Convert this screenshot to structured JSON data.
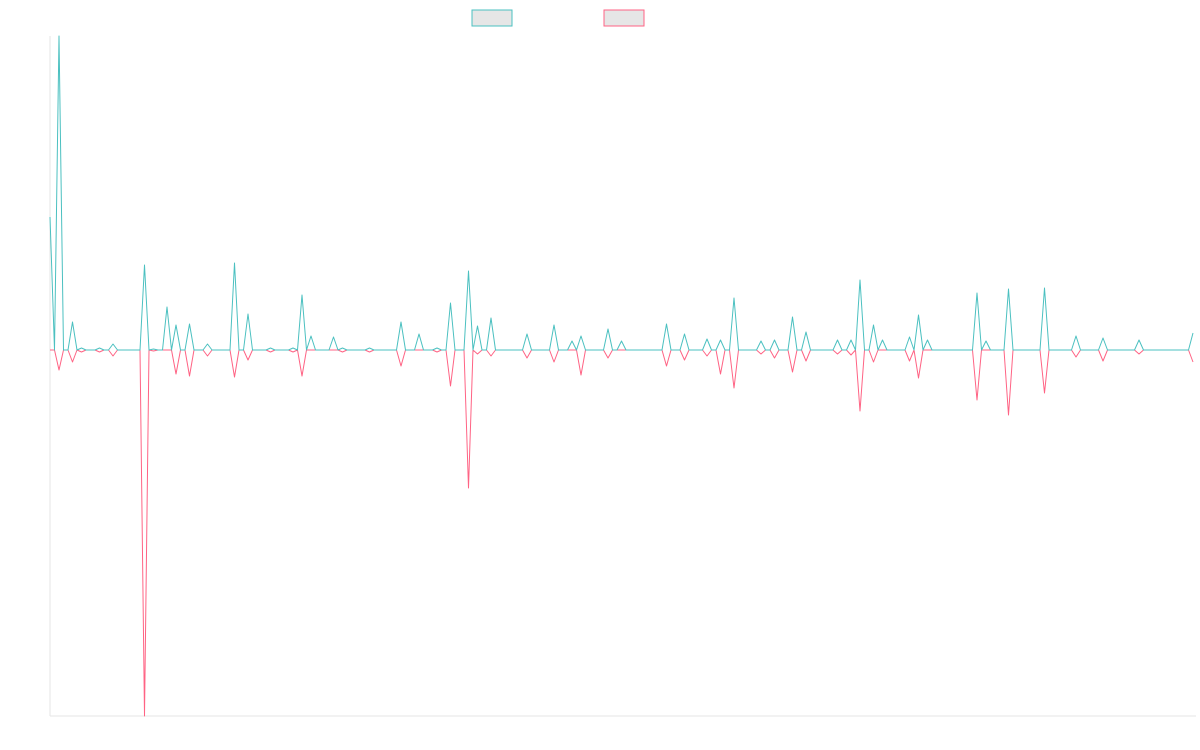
{
  "chart_data": {
    "type": "line",
    "xlim": [
      0,
      254
    ],
    "ylim": [
      -366,
      314
    ],
    "series": [
      {
        "color": "#4bc0c0",
        "values": [
          133,
          0,
          314,
          0,
          0,
          28,
          0,
          2,
          0,
          0,
          0,
          2,
          0,
          0,
          6,
          0,
          0,
          0,
          0,
          0,
          0,
          85,
          0,
          1,
          0,
          0,
          43,
          0,
          25,
          0,
          0,
          26,
          0,
          0,
          0,
          6,
          0,
          0,
          0,
          0,
          0,
          87,
          0,
          0,
          36,
          0,
          0,
          0,
          0,
          2,
          0,
          0,
          0,
          0,
          2,
          0,
          55,
          0,
          14,
          0,
          0,
          0,
          0,
          13,
          0,
          2,
          0,
          0,
          0,
          0,
          0,
          2,
          0,
          0,
          0,
          0,
          0,
          0,
          28,
          0,
          0,
          0,
          16,
          0,
          0,
          0,
          2,
          0,
          0,
          47,
          0,
          0,
          0,
          79,
          0,
          24,
          0,
          0,
          32,
          0,
          0,
          0,
          0,
          0,
          0,
          0,
          16,
          0,
          0,
          0,
          0,
          0,
          25,
          0,
          0,
          0,
          9,
          0,
          14,
          0,
          0,
          0,
          0,
          0,
          21,
          0,
          0,
          9,
          0,
          0,
          0,
          0,
          0,
          0,
          0,
          0,
          0,
          26,
          0,
          0,
          0,
          16,
          0,
          0,
          0,
          0,
          11,
          0,
          0,
          10,
          0,
          0,
          52,
          0,
          0,
          0,
          0,
          0,
          9,
          0,
          0,
          10,
          0,
          0,
          0,
          33,
          0,
          0,
          18,
          0,
          0,
          0,
          0,
          0,
          0,
          10,
          0,
          0,
          10,
          0,
          70,
          0,
          0,
          25,
          0,
          10,
          0,
          0,
          0,
          0,
          0,
          13,
          0,
          35,
          0,
          10,
          0,
          0,
          0,
          0,
          0,
          0,
          0,
          0,
          0,
          0,
          57,
          0,
          9,
          0,
          0,
          0,
          0,
          61,
          0,
          0,
          0,
          0,
          0,
          0,
          0,
          62,
          0,
          0,
          0,
          0,
          0,
          0,
          14,
          0,
          0,
          0,
          0,
          0,
          12,
          0,
          0,
          0,
          0,
          0,
          0,
          0,
          10,
          0,
          0,
          0,
          0,
          0,
          0,
          0,
          0,
          0,
          0,
          0,
          17
        ]
      },
      {
        "color": "#ff6384",
        "values": [
          0,
          0,
          -20,
          0,
          0,
          -12,
          0,
          -2,
          0,
          0,
          0,
          -2,
          0,
          0,
          -6,
          0,
          0,
          0,
          0,
          0,
          0,
          -366,
          0,
          -1,
          0,
          0,
          0,
          0,
          -24,
          0,
          0,
          -26,
          0,
          0,
          0,
          -6,
          0,
          0,
          0,
          0,
          0,
          -27,
          0,
          0,
          -10,
          0,
          0,
          0,
          0,
          -2,
          0,
          0,
          0,
          0,
          -2,
          0,
          -26,
          0,
          0,
          0,
          0,
          0,
          0,
          0,
          0,
          -2,
          0,
          0,
          0,
          0,
          0,
          -2,
          0,
          0,
          0,
          0,
          0,
          0,
          -16,
          0,
          0,
          0,
          0,
          0,
          0,
          0,
          -2,
          0,
          0,
          -36,
          0,
          0,
          0,
          -138,
          0,
          -4,
          0,
          0,
          -6,
          0,
          0,
          0,
          0,
          0,
          0,
          0,
          -8,
          0,
          0,
          0,
          0,
          0,
          -12,
          0,
          0,
          0,
          0,
          0,
          -25,
          0,
          0,
          0,
          0,
          0,
          -8,
          0,
          0,
          0,
          0,
          0,
          0,
          0,
          0,
          0,
          0,
          0,
          0,
          -16,
          0,
          0,
          0,
          -10,
          0,
          0,
          0,
          0,
          -6,
          0,
          0,
          -24,
          0,
          0,
          -38,
          0,
          0,
          0,
          0,
          0,
          -4,
          0,
          0,
          -8,
          0,
          0,
          0,
          -22,
          0,
          0,
          -11,
          0,
          0,
          0,
          0,
          0,
          0,
          -4,
          0,
          0,
          -5,
          0,
          -61,
          0,
          0,
          -12,
          0,
          0,
          0,
          0,
          0,
          0,
          0,
          -11,
          0,
          -28,
          0,
          0,
          0,
          0,
          0,
          0,
          0,
          0,
          0,
          0,
          0,
          0,
          -50,
          0,
          0,
          0,
          0,
          0,
          0,
          -65,
          0,
          0,
          0,
          0,
          0,
          0,
          0,
          -43,
          0,
          0,
          0,
          0,
          0,
          0,
          -7,
          0,
          0,
          0,
          0,
          0,
          -11,
          0,
          0,
          0,
          0,
          0,
          0,
          0,
          -4,
          0,
          0,
          0,
          0,
          0,
          0,
          0,
          0,
          0,
          0,
          0,
          -12
        ]
      }
    ]
  }
}
